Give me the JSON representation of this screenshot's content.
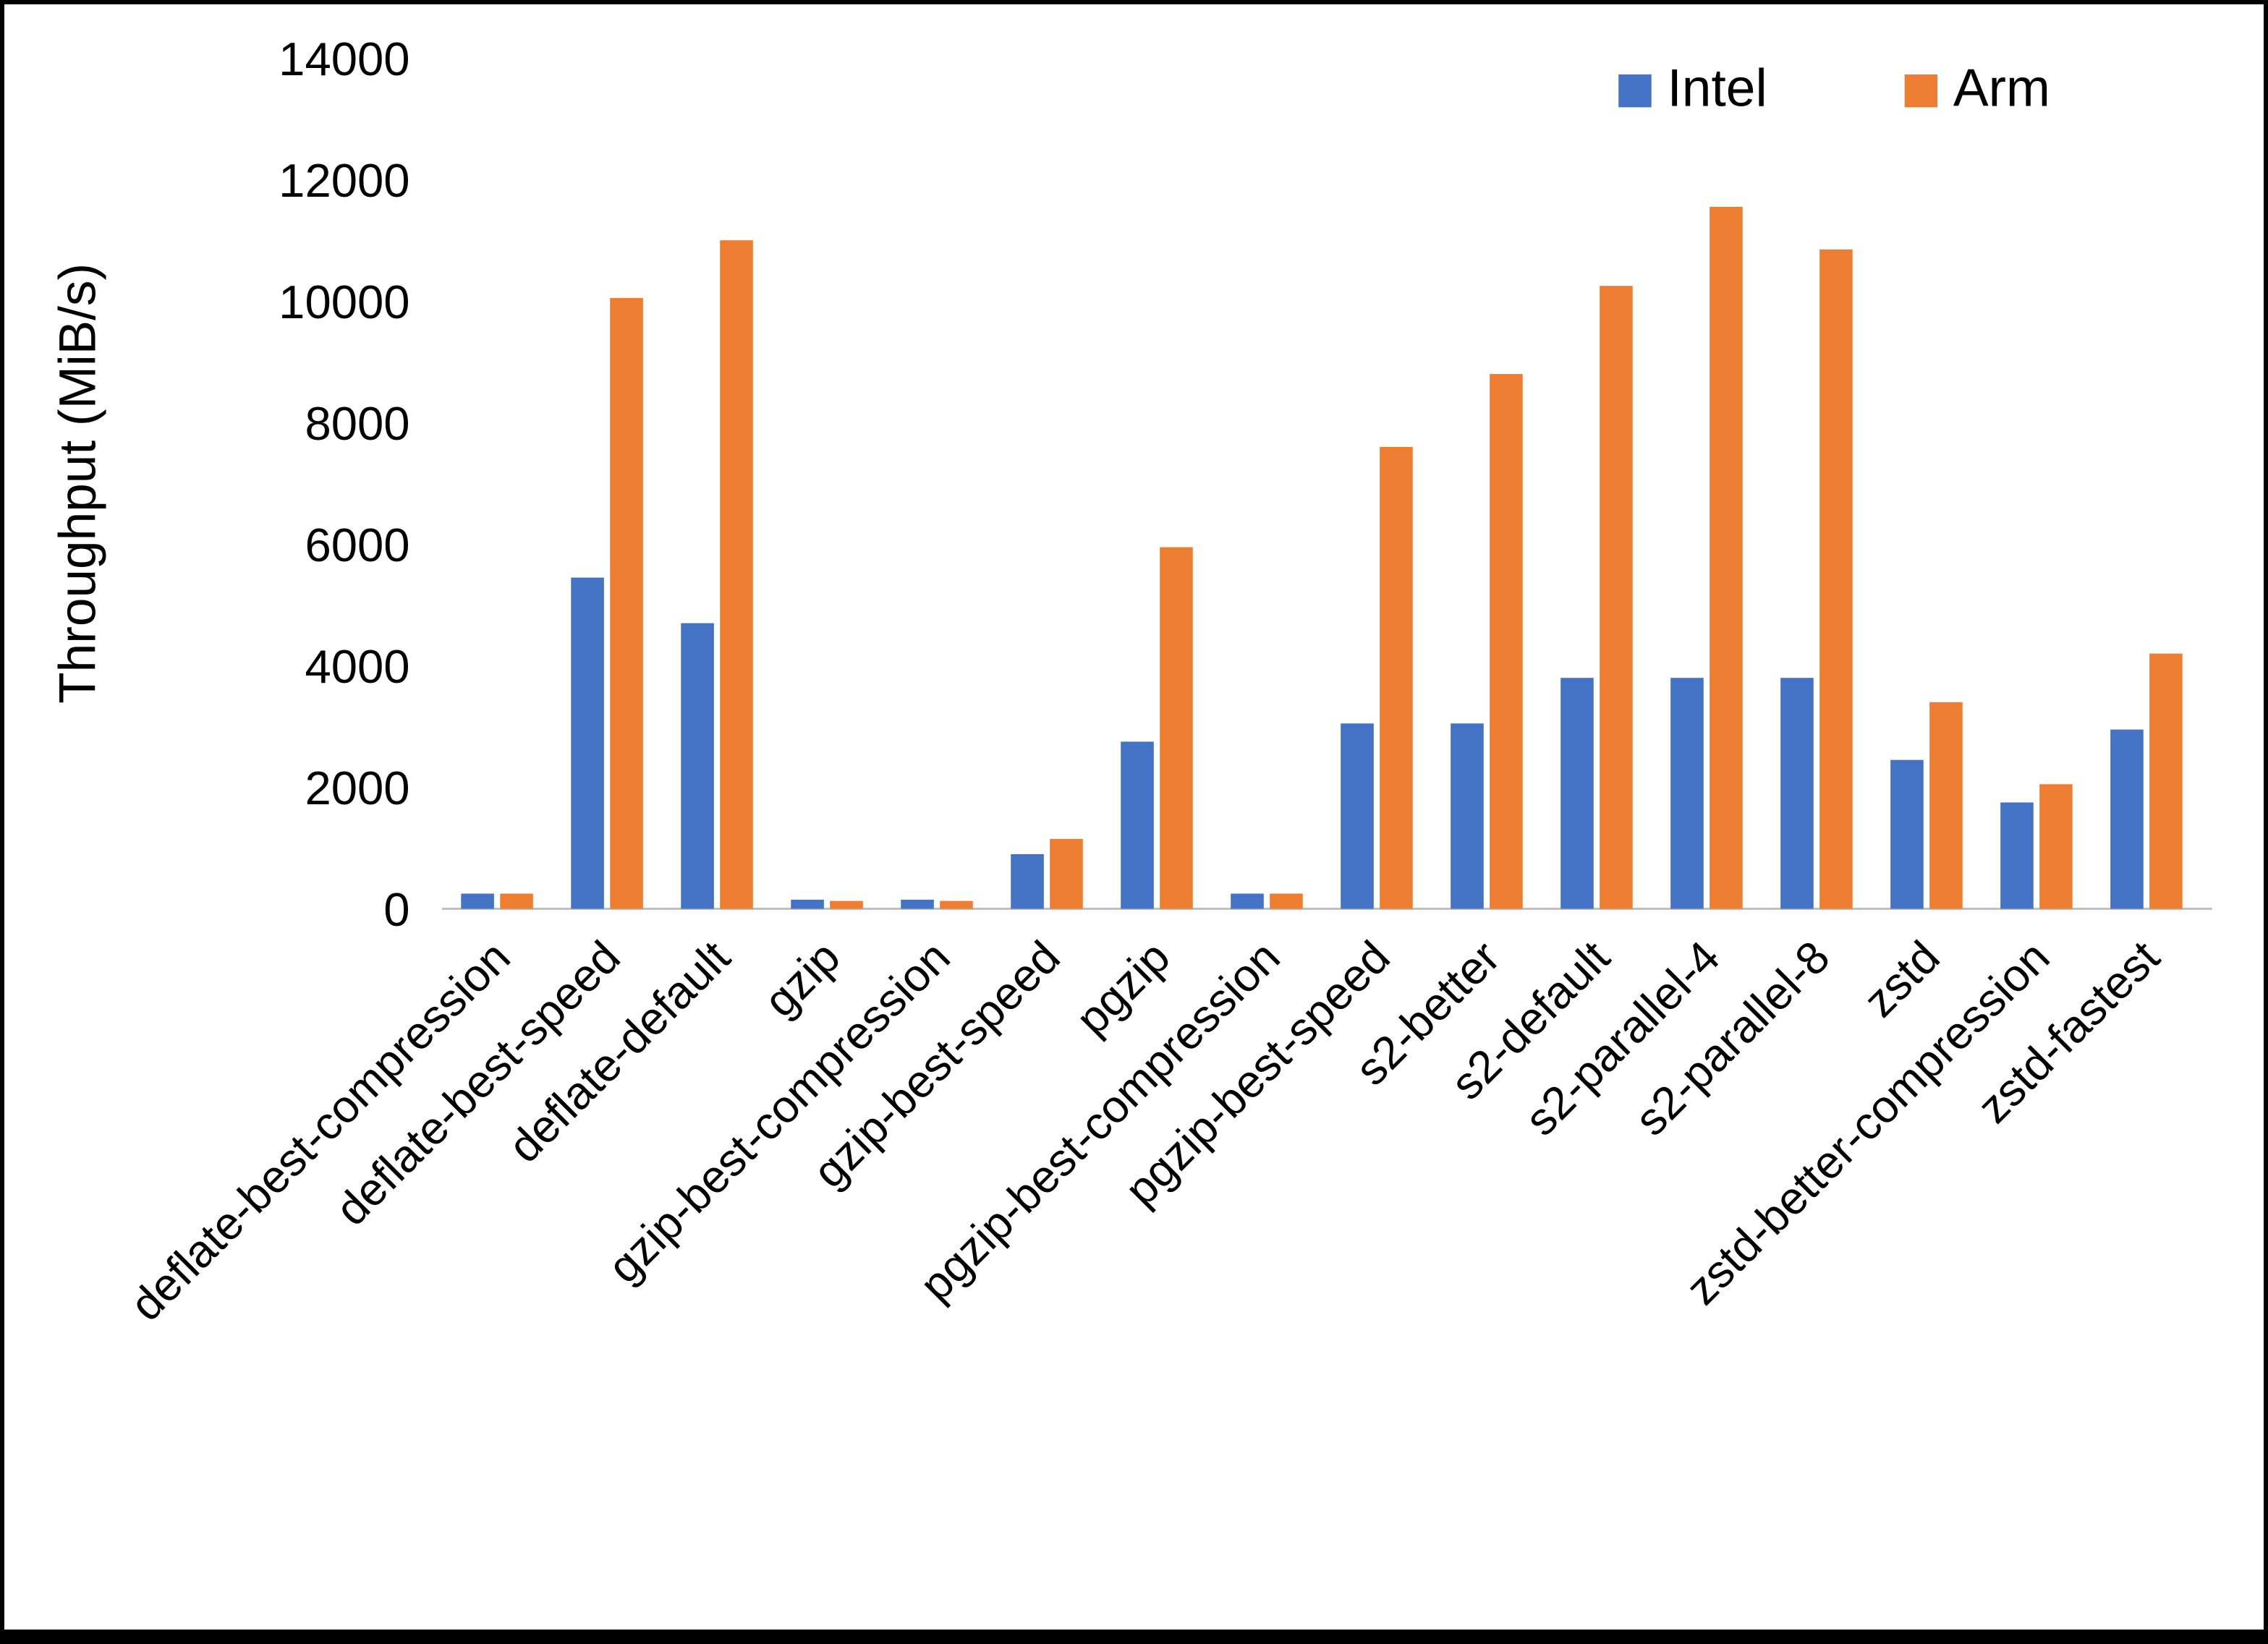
{
  "chart_data": {
    "type": "bar",
    "title": "",
    "xlabel": "",
    "ylabel": "Throughput (MiB/s)",
    "ylim": [
      0,
      14000
    ],
    "yticks": [
      0,
      2000,
      4000,
      6000,
      8000,
      10000,
      12000,
      14000
    ],
    "grid": false,
    "legend_position": "top-right",
    "categories": [
      "deflate-best-compression",
      "deflate-best-speed",
      "deflate-default",
      "gzip",
      "gzip-best-compression",
      "gzip-best-speed",
      "pgzip",
      "pgzip-best-compression",
      "pgzip-best-speed",
      "s2-better",
      "s2-default",
      "s2-parallel-4",
      "s2-parallel-8",
      "zstd",
      "zstd-better-compression",
      "zstd-fastest"
    ],
    "series": [
      {
        "name": "Intel",
        "color": "#4472C4",
        "values": [
          250,
          5450,
          4700,
          150,
          150,
          900,
          2750,
          250,
          3050,
          3050,
          3800,
          3800,
          3800,
          2450,
          1750,
          2950
        ]
      },
      {
        "name": "Arm",
        "color": "#ED7D31",
        "values": [
          250,
          10050,
          11000,
          130,
          130,
          1150,
          5950,
          250,
          7600,
          8800,
          10250,
          11550,
          10850,
          3400,
          2050,
          4200
        ]
      }
    ],
    "axis_color": "#bfbfbf",
    "text_color": "#000000"
  }
}
